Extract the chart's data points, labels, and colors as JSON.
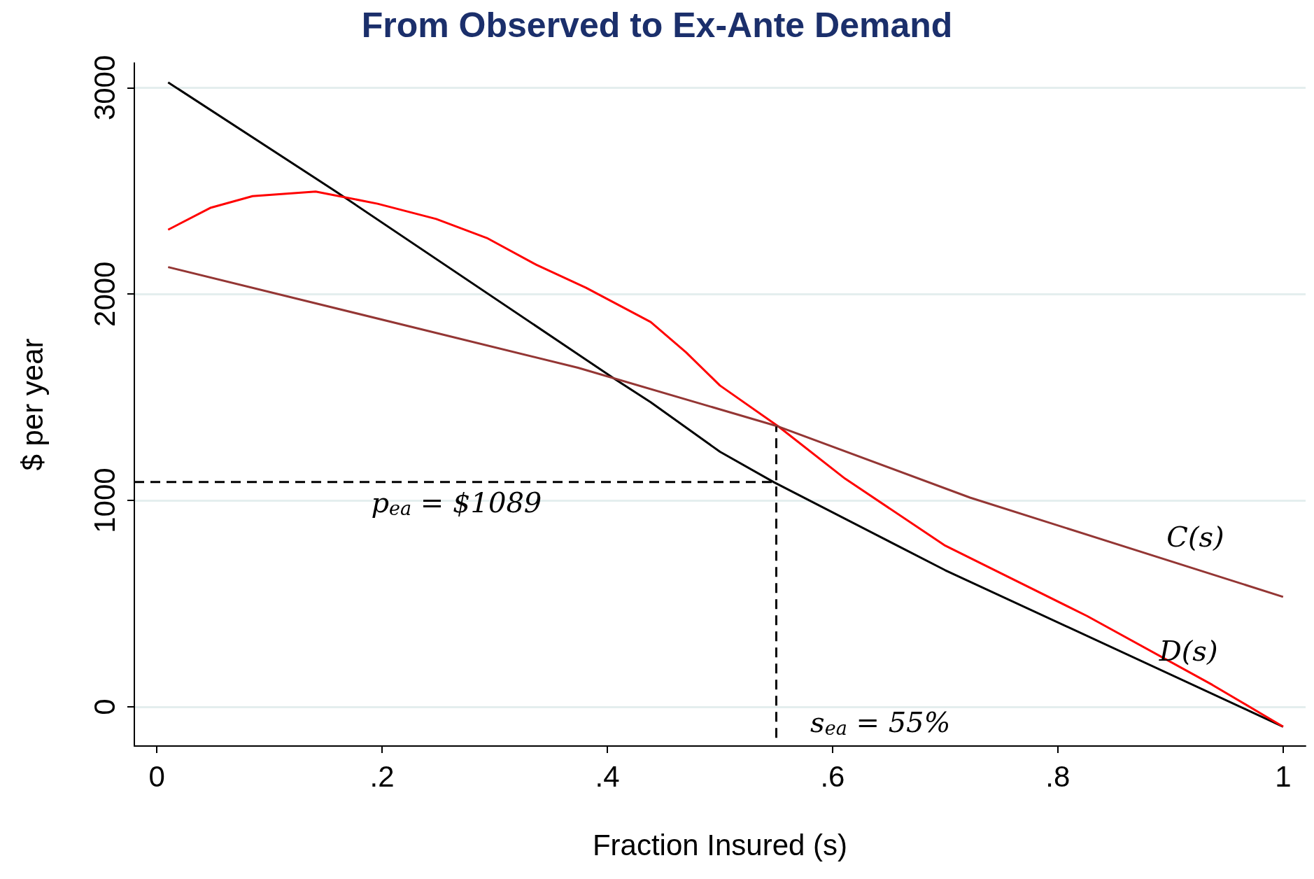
{
  "chart_data": {
    "type": "line",
    "title": "From Observed to Ex-Ante Demand",
    "xlabel": "Fraction Insured (s)",
    "ylabel": "$ per year",
    "xlim": [
      -0.02,
      1.02
    ],
    "ylim": [
      -190,
      3120
    ],
    "xticks": [
      0,
      {
        "value": 0.2,
        "label": ".2"
      },
      {
        "value": 0.4,
        "label": ".4"
      },
      {
        "value": 0.6,
        "label": ".6"
      },
      {
        "value": 0.8,
        "label": ".8"
      },
      1
    ],
    "yticks": [
      0,
      1000,
      2000,
      3000
    ],
    "grid": "y",
    "marker": "none",
    "series": [
      {
        "name": "D(s)",
        "color": "#000000",
        "x": [
          0.01,
          0.159,
          0.407,
          0.4385,
          0.5,
          0.548,
          0.7,
          1.0
        ],
        "values": [
          3026,
          2497,
          1587,
          1476,
          1236,
          1088,
          662,
          -96
        ]
      },
      {
        "color": "#ff0000",
        "x": [
          0.01,
          0.048,
          0.085,
          0.141,
          0.196,
          0.248,
          0.293,
          0.337,
          0.381,
          0.4385,
          0.47,
          0.5,
          0.552,
          0.611,
          0.7,
          0.826,
          0.937,
          1.0
        ],
        "values": [
          2312,
          2419,
          2475,
          2497,
          2438,
          2364,
          2272,
          2142,
          2031,
          1865,
          1717,
          1557,
          1358,
          1106,
          781,
          440,
          107,
          -96
        ]
      },
      {
        "name": "C(s)",
        "color": "#943634",
        "x": [
          0.01,
          0.374,
          0.552,
          0.722,
          1.0
        ],
        "values": [
          2131,
          1643,
          1358,
          1014,
          533
        ]
      },
      {
        "color": "#000000",
        "line_style": "dashed",
        "x": [
          -0.02,
          0.55
        ],
        "values": [
          1089,
          1089
        ]
      },
      {
        "color": "#000000",
        "line_style": "dashed",
        "x": [
          0.55,
          0.55
        ],
        "values": [
          -150,
          1358
        ]
      }
    ],
    "annotations": [
      "p$_{ea}$ = $1089",
      "s$_{ea}$ = 55%"
    ]
  }
}
